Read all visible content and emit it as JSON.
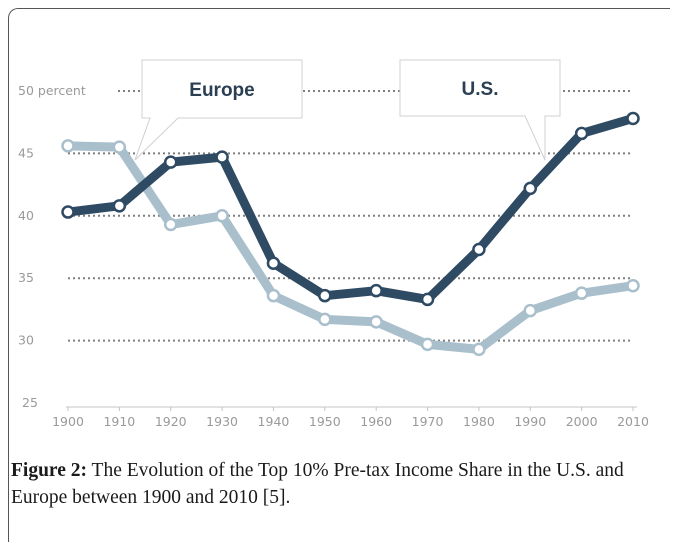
{
  "chart_data": {
    "type": "line",
    "x": [
      1900,
      1910,
      1920,
      1930,
      1940,
      1950,
      1960,
      1970,
      1980,
      1990,
      2000,
      2010
    ],
    "series": [
      {
        "name": "U.S.",
        "values": [
          40.3,
          40.8,
          44.3,
          44.7,
          36.2,
          33.6,
          34.0,
          33.3,
          37.3,
          42.2,
          46.6,
          47.8
        ]
      },
      {
        "name": "Europe",
        "values": [
          45.6,
          45.5,
          39.3,
          40.0,
          33.6,
          31.7,
          31.5,
          29.7,
          29.3,
          32.4,
          33.8,
          34.4
        ]
      }
    ],
    "colors": {
      "us": "#2f4a63",
      "europe": "#a9bfcc",
      "grid": "#7f7f7f"
    },
    "ylim": [
      25,
      50
    ],
    "xlim": [
      1900,
      2010
    ],
    "yticks": [
      "25",
      "30",
      "35",
      "40",
      "45",
      "50 percent"
    ],
    "xticks": [
      "1900",
      "1910",
      "1920",
      "1930",
      "1940",
      "1950",
      "1960",
      "1970",
      "1980",
      "1990",
      "2000",
      "2010"
    ],
    "annotations": [
      {
        "text": "Europe",
        "series": "Europe"
      },
      {
        "text": "U.S.",
        "series": "U.S."
      }
    ],
    "grid": true,
    "legend": "callouts"
  },
  "caption": {
    "label": "Figure 2:",
    "text": " The Evolution of the Top 10% Pre-tax Income Share in the U.S. and Europe between 1900 and 2010 [5]."
  }
}
